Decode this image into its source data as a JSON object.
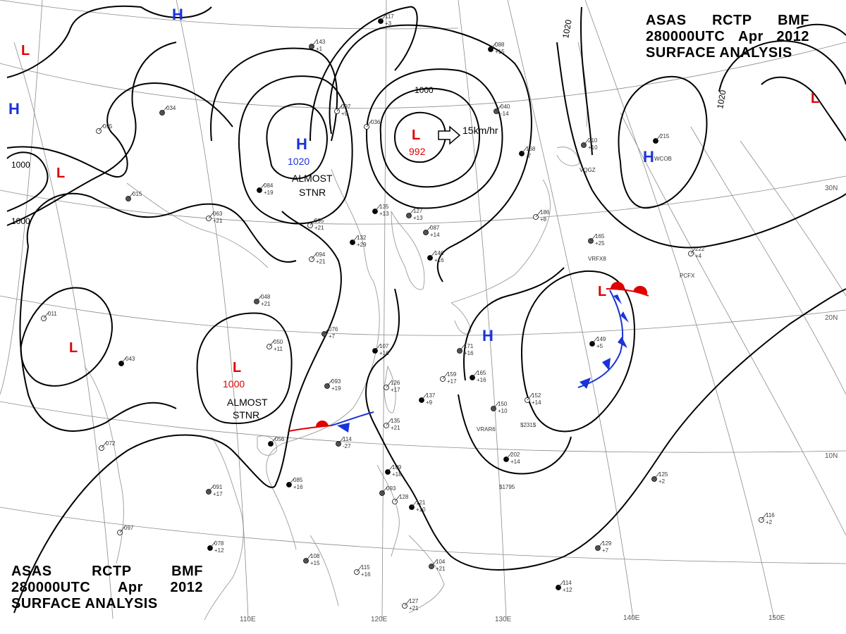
{
  "header": {
    "line1": [
      "ASAS",
      "RCTP",
      "BMF"
    ],
    "line2": [
      "280000UTC",
      "Apr",
      "2012"
    ],
    "line3": "SURFACE ANALYSIS"
  },
  "graticule_labels": {
    "lon": [
      "110E",
      "120E",
      "130E",
      "140E",
      "150E"
    ],
    "lat": [
      "30N",
      "20N",
      "10N"
    ]
  },
  "isobar_labels": [
    "1020",
    "1020",
    "1000",
    "1000",
    "1000"
  ],
  "pressure_systems": [
    {
      "type": "L",
      "value": "992",
      "color": "#e00000"
    },
    {
      "type": "H",
      "value": "1020",
      "color": "#1a33d9"
    },
    {
      "type": "L",
      "value": "1000",
      "color": "#e00000"
    },
    {
      "type": "H",
      "value": "",
      "color": "#1a33d9"
    },
    {
      "type": "H",
      "value": "",
      "color": "#1a33d9"
    },
    {
      "type": "H",
      "value": "",
      "color": "#1a33d9"
    },
    {
      "type": "H",
      "value": "",
      "color": "#1a33d9"
    },
    {
      "type": "L",
      "value": "",
      "color": "#e00000"
    },
    {
      "type": "L",
      "value": "",
      "color": "#e00000"
    },
    {
      "type": "L",
      "value": "",
      "color": "#e00000"
    },
    {
      "type": "L",
      "value": "",
      "color": "#e00000"
    },
    {
      "type": "L",
      "value": "",
      "color": "#e00000"
    }
  ],
  "annotations": {
    "motion": "15km/hr",
    "almost_stnr_1": [
      "ALMOST",
      "STNR"
    ],
    "almost_stnr_2": [
      "ALMOST",
      "STNR"
    ]
  },
  "stations": [
    {
      "a": "117",
      "b": "+3"
    },
    {
      "a": "143",
      "b": "+1"
    },
    {
      "a": "097",
      "b": "+9"
    },
    {
      "a": "088",
      "b": "+15"
    },
    {
      "a": "040",
      "b": "-14"
    },
    {
      "a": "095",
      "b": ""
    },
    {
      "a": "084",
      "b": "+19"
    },
    {
      "a": "015",
      "b": ""
    },
    {
      "a": "063",
      "b": "+21"
    },
    {
      "a": "135",
      "b": "+13"
    },
    {
      "a": "127",
      "b": "+13"
    },
    {
      "a": "095",
      "b": "+21"
    },
    {
      "a": "132",
      "b": "+29"
    },
    {
      "a": "087",
      "b": "+14"
    },
    {
      "a": "094",
      "b": "+21"
    },
    {
      "a": "146",
      "b": "+16"
    },
    {
      "a": "048",
      "b": "+21"
    },
    {
      "a": "011",
      "b": ""
    },
    {
      "a": "043",
      "b": ""
    },
    {
      "a": "076",
      "b": "+7"
    },
    {
      "a": "050",
      "b": "+11"
    },
    {
      "a": "107",
      "b": "+16"
    },
    {
      "a": "093",
      "b": "+19"
    },
    {
      "a": "126",
      "b": "+17"
    },
    {
      "a": "137",
      "b": "+9"
    },
    {
      "a": "171",
      "b": "+16"
    },
    {
      "a": "159",
      "b": "+17"
    },
    {
      "a": "165",
      "b": "+16"
    },
    {
      "a": "150",
      "b": "+10"
    },
    {
      "a": "152",
      "b": "+14"
    },
    {
      "a": "149",
      "b": "+5"
    },
    {
      "a": "165",
      "b": "+25"
    },
    {
      "a": "222",
      "b": "+4"
    },
    {
      "a": "215",
      "b": ""
    },
    {
      "a": "210",
      "b": "+10"
    },
    {
      "a": "186",
      "b": "+8"
    },
    {
      "a": "168",
      "b": "-7"
    },
    {
      "a": "114",
      "b": "-27"
    },
    {
      "a": "135",
      "b": "+21"
    },
    {
      "a": "202",
      "b": "+14"
    },
    {
      "a": "125",
      "b": "+2"
    },
    {
      "a": "072",
      "b": ""
    },
    {
      "a": "085",
      "b": "+16"
    },
    {
      "a": "091",
      "b": "+17"
    },
    {
      "a": "097",
      "b": ""
    },
    {
      "a": "078",
      "b": "+12"
    },
    {
      "a": "108",
      "b": "+15"
    },
    {
      "a": "115",
      "b": "+16"
    },
    {
      "a": "121",
      "b": "+10"
    },
    {
      "a": "104",
      "b": "+21"
    },
    {
      "a": "127",
      "b": "+21"
    },
    {
      "a": "114",
      "b": "+12"
    },
    {
      "a": "129",
      "b": "+7"
    },
    {
      "a": "116",
      "b": "+2"
    },
    {
      "a": "109",
      "b": "+18"
    },
    {
      "a": "093",
      "b": ""
    },
    {
      "a": "128",
      "b": ""
    },
    {
      "a": "056",
      "b": ""
    },
    {
      "a": "034",
      "b": ""
    },
    {
      "a": "036",
      "b": ""
    }
  ],
  "station_ids": [
    "WCOB",
    "VRFX8",
    "PCFX",
    "VRAR6",
    "$231$",
    "$1795",
    "VQGZ"
  ]
}
